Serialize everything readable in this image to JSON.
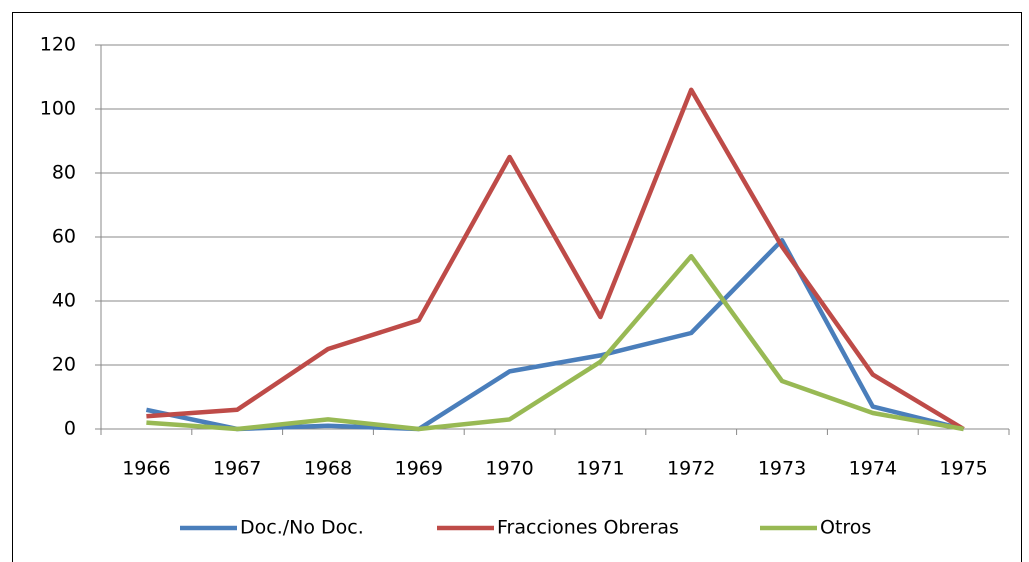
{
  "chart_data": {
    "type": "line",
    "categories": [
      "1966",
      "1967",
      "1968",
      "1969",
      "1970",
      "1971",
      "1972",
      "1973",
      "1974",
      "1975"
    ],
    "series": [
      {
        "name": "Doc./No Doc.",
        "color": "#4a7ebb",
        "values": [
          6,
          0,
          1,
          0,
          18,
          23,
          30,
          59,
          7,
          0
        ]
      },
      {
        "name": "Fracciones Obreras",
        "color": "#be4b48",
        "values": [
          4,
          6,
          25,
          34,
          85,
          35,
          106,
          57,
          17,
          0
        ]
      },
      {
        "name": "Otros",
        "color": "#98b954",
        "values": [
          2,
          0,
          3,
          0,
          3,
          21,
          54,
          15,
          5,
          0
        ]
      }
    ],
    "ylim": [
      0,
      120
    ],
    "yticks": [
      0,
      20,
      40,
      60,
      80,
      100,
      120
    ],
    "grid": true,
    "legend": "bottom"
  }
}
